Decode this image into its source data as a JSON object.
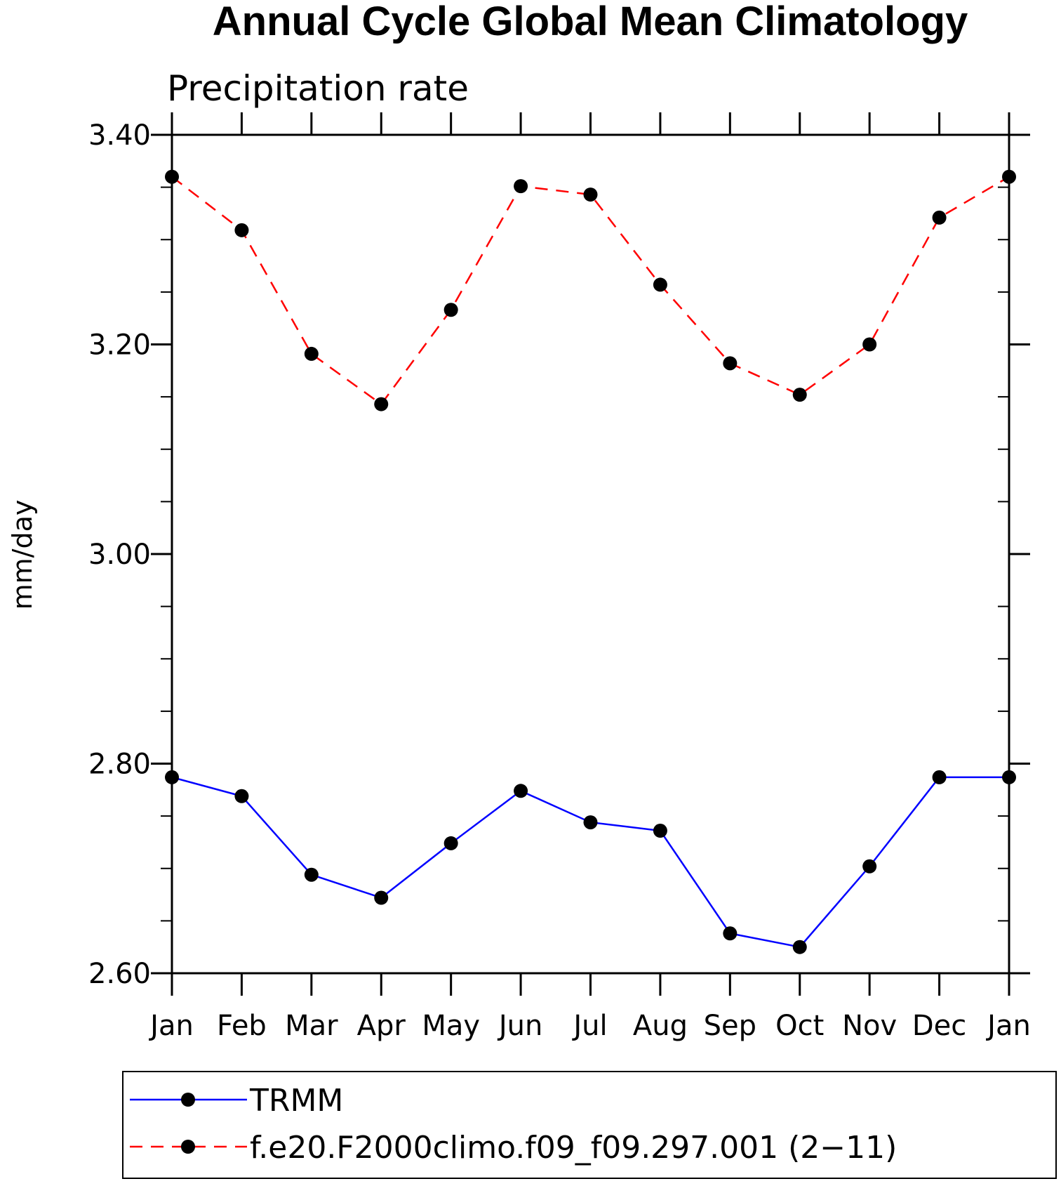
{
  "chart_data": {
    "type": "line",
    "title": "Annual Cycle Global Mean Climatology",
    "subtitle": "Precipitation rate",
    "ylabel": "mm/day",
    "xlabel": "",
    "categories": [
      "Jan",
      "Feb",
      "Mar",
      "Apr",
      "May",
      "Jun",
      "Jul",
      "Aug",
      "Sep",
      "Oct",
      "Nov",
      "Dec",
      "Jan"
    ],
    "ylim": [
      2.6,
      3.4
    ],
    "yticks": [
      2.6,
      2.8,
      3.0,
      3.2,
      3.4
    ],
    "ytick_labels": [
      "2.60",
      "2.80",
      "3.00",
      "3.20",
      "3.40"
    ],
    "y_minor_step": 0.05,
    "grid": false,
    "legend_placement": "bottom",
    "series": [
      {
        "name": "TRMM",
        "color": "#0000ff",
        "line_style": "solid",
        "marker": "filled-circle",
        "marker_color": "#000000",
        "values": [
          2.787,
          2.769,
          2.694,
          2.672,
          2.724,
          2.774,
          2.744,
          2.736,
          2.638,
          2.625,
          2.702,
          2.787,
          2.787
        ]
      },
      {
        "name": "f.e20.F2000climo.f09_f09.297.001 (2−11)",
        "color": "#ff0000",
        "line_style": "dashed",
        "marker": "filled-circle",
        "marker_color": "#000000",
        "values": [
          3.36,
          3.309,
          3.191,
          3.143,
          3.233,
          3.351,
          3.343,
          3.257,
          3.182,
          3.152,
          3.2,
          3.321,
          3.36
        ]
      }
    ]
  }
}
